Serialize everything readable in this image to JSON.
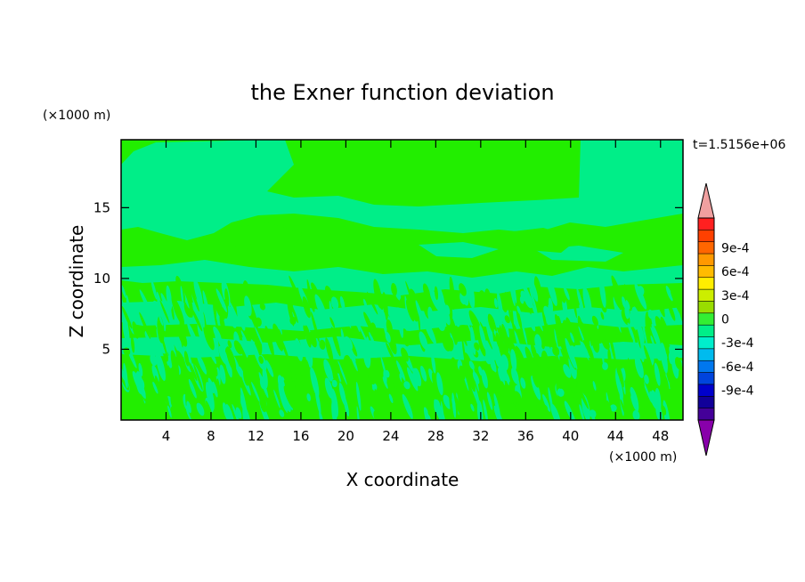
{
  "chart_data": {
    "type": "heatmap",
    "title": "the Exner function deviation",
    "xlabel": "X coordinate",
    "ylabel": "Z coordinate",
    "x_unit": "(×1000 m)",
    "y_unit": "(×1000 m)",
    "time_label": "t=1.5156e+06",
    "xlim": [
      0,
      50
    ],
    "ylim": [
      0,
      19.8
    ],
    "x_ticks": [
      4,
      8,
      12,
      16,
      20,
      24,
      28,
      32,
      36,
      40,
      44,
      48
    ],
    "y_ticks": [
      5,
      10,
      15
    ],
    "colorbar": {
      "labels": [
        "9e-4",
        "6e-4",
        "3e-4",
        "0",
        "-3e-4",
        "-6e-4",
        "-9e-4"
      ],
      "label_values": [
        0.0009,
        0.0006,
        0.0003,
        0,
        -0.0003,
        -0.0006,
        -0.0009
      ],
      "levels_top_to_bottom": [
        0.0012,
        0.00105,
        0.0009,
        0.00075,
        0.0006,
        0.00045,
        0.0003,
        0.00015,
        0,
        -0.00015,
        -0.0003,
        -0.00045,
        -0.0006,
        -0.00075,
        -0.0009,
        -0.00105,
        -0.0012
      ],
      "colors_top_to_bottom": [
        "#ff2020",
        "#ff4000",
        "#ff6600",
        "#ff9900",
        "#ffbb00",
        "#ffee00",
        "#ccee00",
        "#99dd00",
        "#33ee33",
        "#00ee88",
        "#00eecc",
        "#00bbee",
        "#0077ee",
        "#0044dd",
        "#0000cc",
        "#110099",
        "#440099"
      ],
      "over_color": "#f0a0a0",
      "under_color": "#8800aa"
    },
    "field": {
      "dominant_value_range": [
        -0.00015,
        0.00015
      ],
      "positive_color": "#22ee00",
      "negative_color": "#00ee88",
      "description_of_regions": [
        {
          "x_range": [
            0,
            50
          ],
          "z_range": [
            0,
            9
          ],
          "value_sign": "mixed, streaky"
        },
        {
          "x_range": [
            0,
            50
          ],
          "z_range": [
            9,
            14
          ],
          "value_sign": "mostly positive bands"
        },
        {
          "x_range": [
            0,
            50
          ],
          "z_range": [
            14,
            19.8
          ],
          "value_sign": "mostly negative with positive plumes"
        }
      ]
    }
  }
}
